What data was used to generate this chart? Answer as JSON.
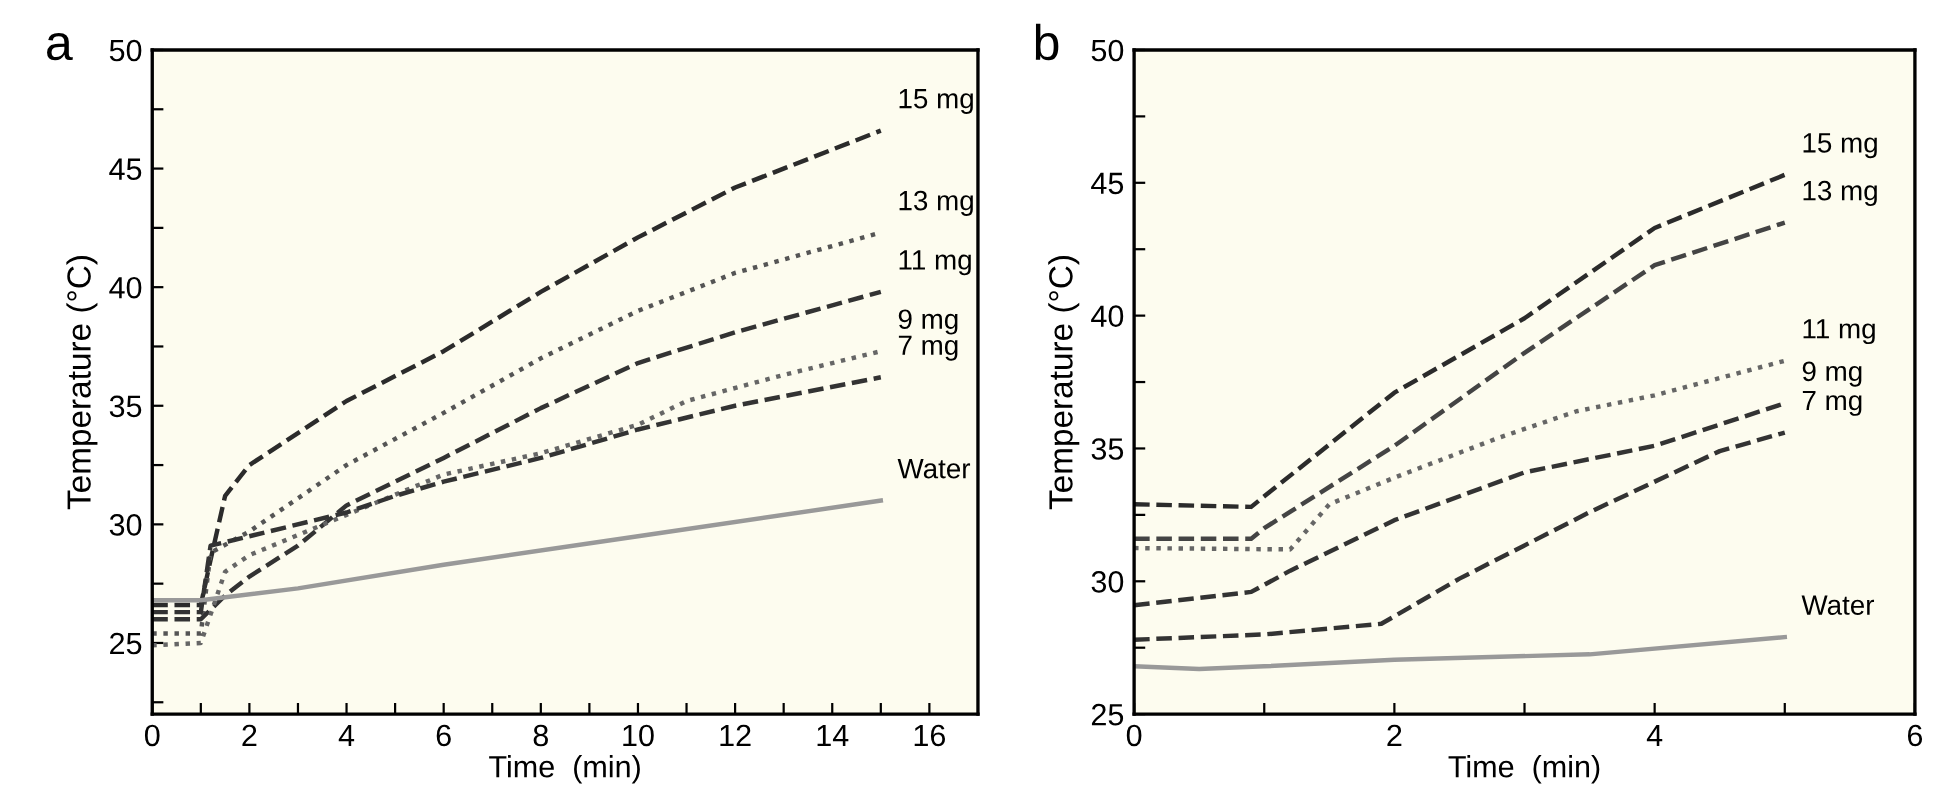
{
  "chart_data": [
    {
      "type": "line",
      "title": "a",
      "xlabel": "Time  (min)",
      "ylabel": "Temperature (°C)",
      "xlim": [
        0,
        17
      ],
      "ylim": [
        22,
        50
      ],
      "xticks": [
        0,
        {
          "value": 1,
          "label": null
        },
        2,
        {
          "value": 3,
          "label": null
        },
        4,
        {
          "value": 5,
          "label": null
        },
        6,
        {
          "value": 7,
          "label": null
        },
        8,
        {
          "value": 9,
          "label": null
        },
        10,
        {
          "value": 11,
          "label": null
        },
        12,
        {
          "value": 13,
          "label": null
        },
        14,
        {
          "value": 15,
          "label": null
        },
        16
      ],
      "yticks": [
        {
          "value": 22.5,
          "label": null
        },
        25,
        {
          "value": 27.5,
          "label": null
        },
        30,
        {
          "value": 32.5,
          "label": null
        },
        35,
        {
          "value": 37.5,
          "label": null
        },
        40,
        {
          "value": 42.5,
          "label": null
        },
        45,
        {
          "value": 47.5,
          "label": null
        },
        50
      ],
      "grid": false,
      "legend": false,
      "marker": "none",
      "series": [
        {
          "name": "15 mg",
          "color": "#2b2b2b",
          "line_style": "dashed",
          "x": [
            0,
            1,
            1.2,
            1.5,
            2,
            4,
            6,
            8,
            10,
            12,
            15
          ],
          "values": [
            26.6,
            26.6,
            28.5,
            31.2,
            32.5,
            35.2,
            37.3,
            39.8,
            42.1,
            44.2,
            46.6
          ]
        },
        {
          "name": "13 mg",
          "color": "#555555",
          "line_style": "dotted",
          "x": [
            0,
            1,
            1.2,
            2,
            4,
            6,
            8,
            10,
            12,
            15
          ],
          "values": [
            25.4,
            25.4,
            28.8,
            29.7,
            32.5,
            34.7,
            37.0,
            39.0,
            40.6,
            42.3
          ]
        },
        {
          "name": "11 mg",
          "color": "#333333",
          "line_style": "dashed",
          "x": [
            0,
            1,
            1.5,
            2,
            3,
            4,
            6,
            8,
            10,
            12,
            15
          ],
          "values": [
            26.0,
            26.0,
            27.0,
            27.8,
            29.1,
            30.8,
            32.8,
            34.9,
            36.8,
            38.1,
            39.8
          ]
        },
        {
          "name": "9 mg",
          "color": "#666666",
          "line_style": "dotted",
          "x": [
            0,
            1,
            1.5,
            2,
            4,
            6,
            8,
            10,
            11,
            13,
            15
          ],
          "values": [
            24.9,
            25.0,
            28.0,
            28.7,
            30.4,
            32.1,
            33.0,
            34.2,
            35.2,
            36.3,
            37.3
          ]
        },
        {
          "name": "7 mg",
          "color": "#333333",
          "line_style": "dashed",
          "x": [
            0,
            1,
            1.2,
            2,
            4,
            5,
            6,
            8,
            10,
            12,
            15
          ],
          "values": [
            26.3,
            26.3,
            29.1,
            29.5,
            30.5,
            31.2,
            31.8,
            32.8,
            34.0,
            35.0,
            36.2
          ]
        },
        {
          "name": "Water",
          "color": "#999999",
          "line_style": "solid",
          "x": [
            0,
            1,
            3,
            6,
            10,
            15
          ],
          "values": [
            26.8,
            26.8,
            27.3,
            28.3,
            29.5,
            31.0
          ]
        }
      ]
    },
    {
      "type": "line",
      "title": "b",
      "xlabel": "Time  (min)",
      "ylabel": "Temperature (°C)",
      "xlim": [
        0,
        6
      ],
      "ylim": [
        25,
        50
      ],
      "xticks": [
        0,
        {
          "value": 1,
          "label": null
        },
        2,
        {
          "value": 3,
          "label": null
        },
        4,
        {
          "value": 5,
          "label": null
        },
        6
      ],
      "yticks": [
        25,
        {
          "value": 27.5,
          "label": null
        },
        30,
        {
          "value": 32.5,
          "label": null
        },
        35,
        {
          "value": 37.5,
          "label": null
        },
        40,
        {
          "value": 42.5,
          "label": null
        },
        45,
        {
          "value": 47.5,
          "label": null
        },
        50
      ],
      "grid": false,
      "legend": false,
      "marker": "none",
      "series": [
        {
          "name": "15 mg",
          "color": "#2b2b2b",
          "line_style": "dashed",
          "x": [
            0,
            0.9,
            1.0,
            2,
            3,
            4,
            5
          ],
          "values": [
            32.9,
            32.8,
            33.2,
            37.1,
            39.9,
            43.3,
            45.3
          ]
        },
        {
          "name": "13 mg",
          "color": "#444444",
          "line_style": "dashed",
          "x": [
            0,
            0.9,
            1.0,
            2,
            3,
            4,
            5
          ],
          "values": [
            31.6,
            31.6,
            32.0,
            35.1,
            38.6,
            41.9,
            43.5
          ]
        },
        {
          "name": "11 mg",
          "color": "#666666",
          "line_style": "dotted",
          "x": [
            0,
            1.2,
            1.5,
            2,
            2.8,
            3.4,
            4,
            5
          ],
          "values": [
            31.25,
            31.2,
            32.9,
            33.9,
            35.4,
            36.4,
            37.0,
            38.3
          ]
        },
        {
          "name": "9 mg",
          "color": "#333333",
          "line_style": "dashed",
          "x": [
            0,
            0.9,
            1.2,
            2,
            3,
            4,
            5
          ],
          "values": [
            29.1,
            29.6,
            30.4,
            32.3,
            34.1,
            35.1,
            36.7
          ]
        },
        {
          "name": "7 mg",
          "color": "#333333",
          "line_style": "dashed",
          "x": [
            0,
            1,
            1.9,
            2.5,
            3.5,
            4.5,
            5
          ],
          "values": [
            27.8,
            28.0,
            28.4,
            30.1,
            32.6,
            34.9,
            35.6
          ]
        },
        {
          "name": "Water",
          "color": "#999999",
          "line_style": "solid",
          "x": [
            0,
            0.5,
            1,
            2,
            3.5,
            5
          ],
          "values": [
            26.8,
            26.7,
            26.8,
            27.05,
            27.25,
            27.9
          ]
        }
      ]
    }
  ]
}
